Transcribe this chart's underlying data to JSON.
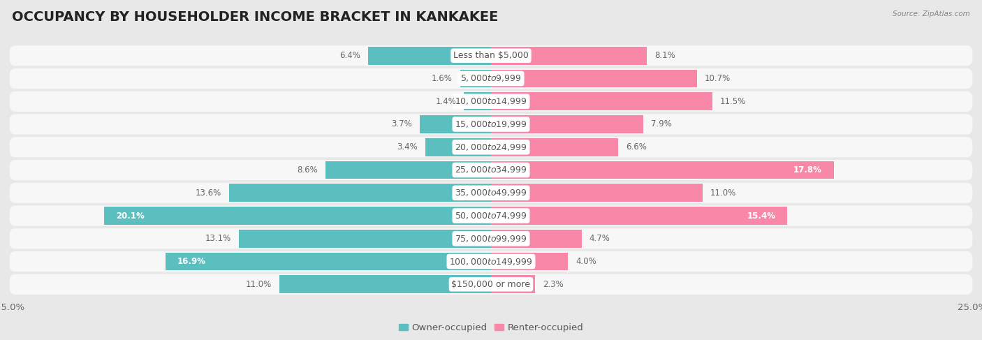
{
  "title": "OCCUPANCY BY HOUSEHOLDER INCOME BRACKET IN KANKAKEE",
  "source": "Source: ZipAtlas.com",
  "categories": [
    "Less than $5,000",
    "$5,000 to $9,999",
    "$10,000 to $14,999",
    "$15,000 to $19,999",
    "$20,000 to $24,999",
    "$25,000 to $34,999",
    "$35,000 to $49,999",
    "$50,000 to $74,999",
    "$75,000 to $99,999",
    "$100,000 to $149,999",
    "$150,000 or more"
  ],
  "owner_values": [
    6.4,
    1.6,
    1.4,
    3.7,
    3.4,
    8.6,
    13.6,
    20.1,
    13.1,
    16.9,
    11.0
  ],
  "renter_values": [
    8.1,
    10.7,
    11.5,
    7.9,
    6.6,
    17.8,
    11.0,
    15.4,
    4.7,
    4.0,
    2.3
  ],
  "owner_color": "#5BBFBF",
  "renter_color": "#F887A8",
  "background_color": "#e8e8e8",
  "bar_bg_color": "#f0f0f0",
  "xlim": 25.0,
  "title_fontsize": 14,
  "label_fontsize": 9,
  "value_fontsize": 8.5,
  "tick_fontsize": 9.5,
  "legend_fontsize": 9.5
}
